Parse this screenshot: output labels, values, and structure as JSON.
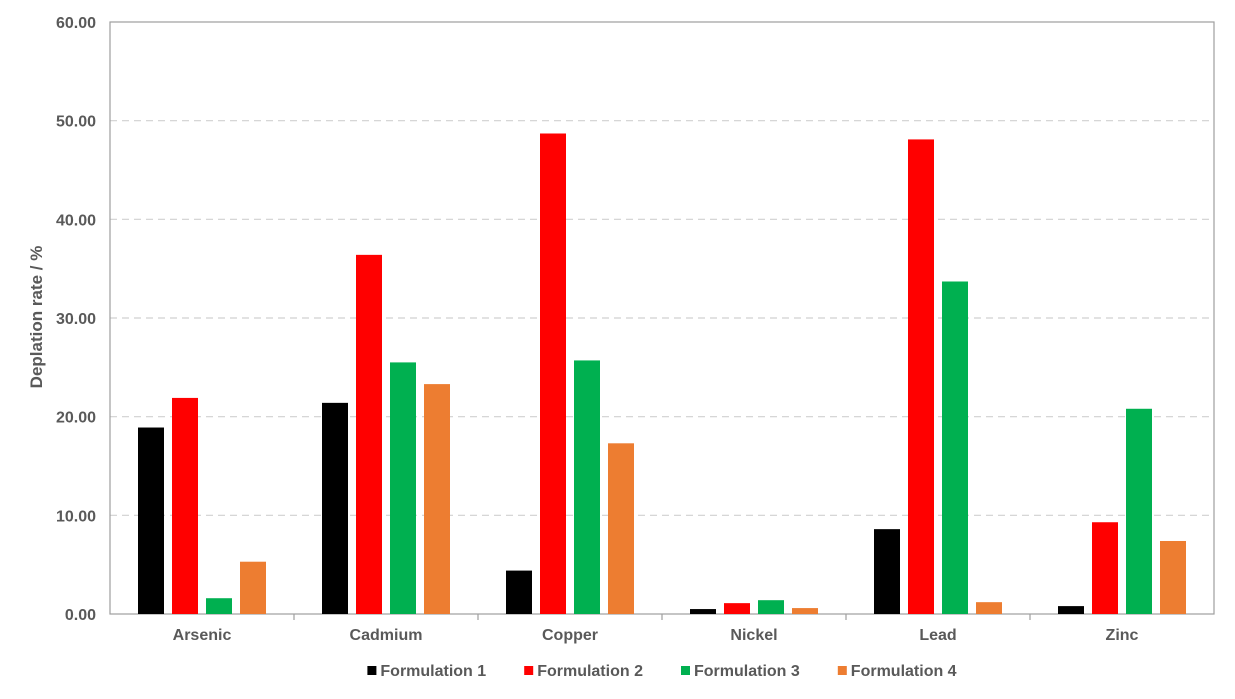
{
  "chart_data": {
    "type": "bar",
    "title": "",
    "xlabel": "",
    "ylabel": "Deplation rate / %",
    "ylim": [
      0,
      60
    ],
    "yticks": [
      "0.00",
      "10.00",
      "20.00",
      "30.00",
      "40.00",
      "50.00",
      "60.00"
    ],
    "grid": "horizontal dashed",
    "legend_position": "bottom",
    "categories": [
      "Arsenic",
      "Cadmium",
      "Copper",
      "Nickel",
      "Lead",
      "Zinc"
    ],
    "series": [
      {
        "name": "Formulation 1",
        "color": "#000000",
        "values": [
          18.9,
          21.4,
          4.4,
          0.5,
          8.6,
          0.8
        ]
      },
      {
        "name": "Formulation 2",
        "color": "#ff0000",
        "values": [
          21.9,
          36.4,
          48.7,
          1.1,
          48.1,
          9.3
        ]
      },
      {
        "name": "Formulation 3",
        "color": "#00b050",
        "values": [
          1.6,
          25.5,
          25.7,
          1.4,
          33.7,
          20.8
        ]
      },
      {
        "name": "Formulation 4",
        "color": "#ed7d31",
        "values": [
          5.3,
          23.3,
          17.3,
          0.6,
          1.2,
          7.4
        ]
      }
    ]
  }
}
